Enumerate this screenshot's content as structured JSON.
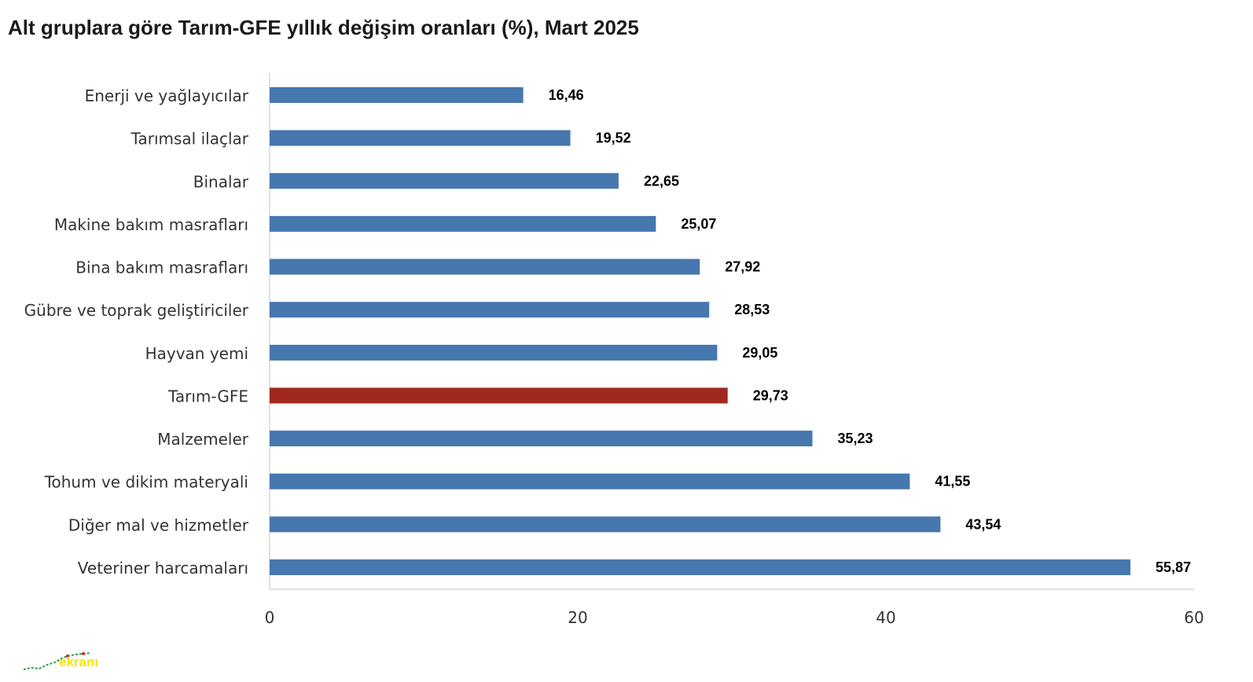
{
  "chart_data": {
    "type": "bar",
    "orientation": "horizontal",
    "title": "Alt gruplara göre Tarım-GFE yıllık değişim oranları (%), Mart 2025",
    "categories": [
      "Enerji  ve yağlayıcılar",
      "Tarımsal ilaçlar",
      "Binalar",
      "Makine bakım masrafları",
      "Bina bakım masrafları",
      "Gübre ve toprak geliştiriciler",
      "Hayvan yemi",
      "Tarım-GFE",
      "Malzemeler",
      "Tohum ve dikim materyali",
      "Diğer mal ve hizmetler",
      "Veteriner harcamaları"
    ],
    "values": [
      16.46,
      19.52,
      22.65,
      25.07,
      27.92,
      28.53,
      29.05,
      29.73,
      35.23,
      41.55,
      43.54,
      55.87
    ],
    "value_labels": [
      "16,46",
      "19,52",
      "22,65",
      "25,07",
      "27,92",
      "28,53",
      "29,05",
      "29,73",
      "35,23",
      "41,55",
      "43,54",
      "55,87"
    ],
    "highlight_index": 7,
    "colors": {
      "bar": "#4677ae",
      "highlight": "#a0281f",
      "axis": "#d9d9d9"
    },
    "xlim": [
      0,
      60
    ],
    "xticks": [
      0,
      20,
      40,
      60
    ],
    "grid": false,
    "legend": "none"
  },
  "logo": {
    "text": "ekranı"
  }
}
